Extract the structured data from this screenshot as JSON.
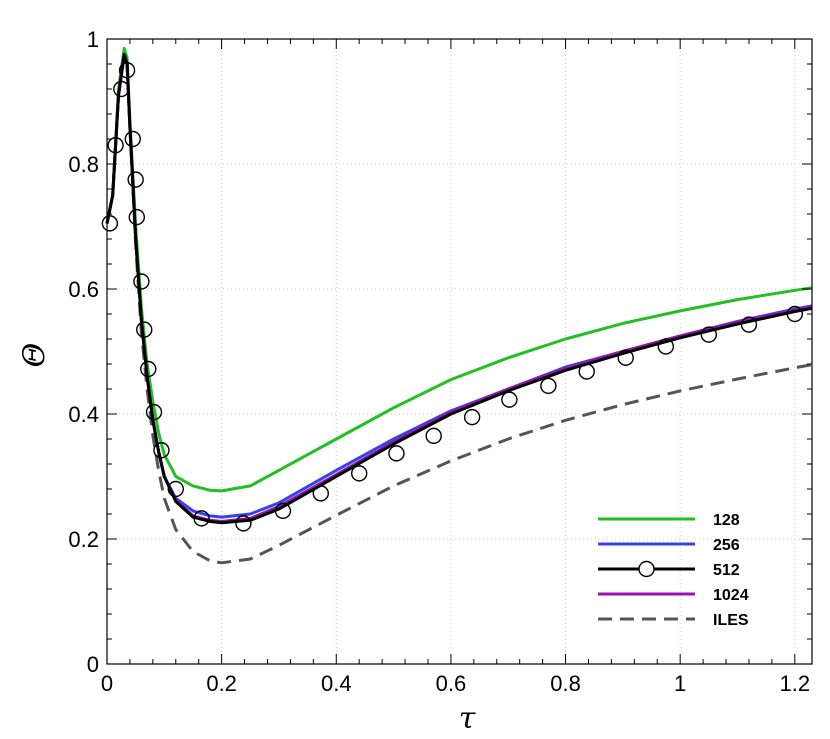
{
  "chart_data": {
    "type": "line",
    "title": "",
    "xlabel": "τ",
    "ylabel": "Θ",
    "xlim": [
      0,
      1.23
    ],
    "ylim": [
      0,
      1
    ],
    "x_ticks": [
      0,
      0.2,
      0.4,
      0.6,
      0.8,
      1,
      1.2
    ],
    "x_tick_labels": [
      "0",
      "0.2",
      "0.4",
      "0.6",
      "0.8",
      "1",
      "1.2"
    ],
    "y_ticks": [
      0,
      0.2,
      0.4,
      0.6,
      0.8,
      1
    ],
    "y_tick_labels": [
      "0",
      "0.2",
      "0.4",
      "0.6",
      "0.8",
      "1"
    ],
    "grid": true,
    "legend_position": "bottom-right",
    "series": [
      {
        "name": "128",
        "color": "#22c022",
        "style": "solid",
        "marker": "none",
        "x": [
          0.0,
          0.01,
          0.02,
          0.03,
          0.035,
          0.04,
          0.05,
          0.06,
          0.07,
          0.08,
          0.09,
          0.1,
          0.12,
          0.15,
          0.18,
          0.2,
          0.25,
          0.3,
          0.4,
          0.5,
          0.6,
          0.7,
          0.8,
          0.9,
          1.0,
          1.1,
          1.2,
          1.23
        ],
        "y": [
          0.705,
          0.75,
          0.92,
          0.985,
          0.97,
          0.87,
          0.7,
          0.57,
          0.48,
          0.42,
          0.37,
          0.335,
          0.3,
          0.285,
          0.278,
          0.277,
          0.285,
          0.31,
          0.36,
          0.41,
          0.455,
          0.49,
          0.52,
          0.545,
          0.565,
          0.583,
          0.598,
          0.602
        ]
      },
      {
        "name": "256",
        "color": "#3344ee",
        "style": "solid",
        "marker": "none",
        "x": [
          0.0,
          0.01,
          0.02,
          0.03,
          0.035,
          0.04,
          0.05,
          0.06,
          0.07,
          0.08,
          0.09,
          0.1,
          0.12,
          0.15,
          0.18,
          0.2,
          0.25,
          0.3,
          0.4,
          0.5,
          0.6,
          0.7,
          0.8,
          0.9,
          1.0,
          1.1,
          1.2,
          1.23
        ],
        "y": [
          0.705,
          0.75,
          0.91,
          0.975,
          0.96,
          0.86,
          0.68,
          0.55,
          0.46,
          0.39,
          0.34,
          0.3,
          0.265,
          0.245,
          0.237,
          0.235,
          0.24,
          0.258,
          0.31,
          0.36,
          0.405,
          0.44,
          0.475,
          0.5,
          0.525,
          0.548,
          0.568,
          0.573
        ]
      },
      {
        "name": "512",
        "color": "#000000",
        "style": "solid",
        "marker": "circle",
        "x": [
          0.0,
          0.01,
          0.02,
          0.03,
          0.035,
          0.04,
          0.05,
          0.06,
          0.07,
          0.08,
          0.09,
          0.1,
          0.12,
          0.15,
          0.18,
          0.2,
          0.25,
          0.3,
          0.4,
          0.5,
          0.6,
          0.7,
          0.8,
          0.9,
          1.0,
          1.1,
          1.2,
          1.23
        ],
        "y": [
          0.705,
          0.75,
          0.91,
          0.975,
          0.96,
          0.86,
          0.68,
          0.55,
          0.46,
          0.39,
          0.34,
          0.3,
          0.26,
          0.235,
          0.228,
          0.226,
          0.23,
          0.248,
          0.3,
          0.352,
          0.4,
          0.437,
          0.47,
          0.497,
          0.522,
          0.544,
          0.564,
          0.569
        ],
        "marker_x": [
          0.005,
          0.015,
          0.025,
          0.035,
          0.045,
          0.05,
          0.052,
          0.06,
          0.065,
          0.072,
          0.082,
          0.095,
          0.12,
          0.165,
          0.238,
          0.307,
          0.373,
          0.44,
          0.505,
          0.57,
          0.637,
          0.702,
          0.77,
          0.837,
          0.905,
          0.975,
          1.05,
          1.12,
          1.2
        ],
        "marker_y": [
          0.705,
          0.83,
          0.92,
          0.95,
          0.84,
          0.775,
          0.715,
          0.612,
          0.535,
          0.472,
          0.403,
          0.342,
          0.28,
          0.233,
          0.225,
          0.245,
          0.273,
          0.305,
          0.337,
          0.365,
          0.395,
          0.423,
          0.445,
          0.468,
          0.49,
          0.508,
          0.527,
          0.543,
          0.56
        ]
      },
      {
        "name": "1024",
        "color": "#9a10b0",
        "style": "solid",
        "marker": "none",
        "x": [
          0.0,
          0.01,
          0.02,
          0.03,
          0.035,
          0.04,
          0.05,
          0.06,
          0.07,
          0.08,
          0.09,
          0.1,
          0.12,
          0.15,
          0.18,
          0.2,
          0.25,
          0.3,
          0.4,
          0.5,
          0.6,
          0.7,
          0.8,
          0.9,
          1.0,
          1.1,
          1.2,
          1.23
        ],
        "y": [
          0.705,
          0.75,
          0.91,
          0.975,
          0.96,
          0.86,
          0.68,
          0.55,
          0.46,
          0.39,
          0.34,
          0.3,
          0.262,
          0.237,
          0.23,
          0.228,
          0.233,
          0.252,
          0.303,
          0.355,
          0.403,
          0.44,
          0.473,
          0.5,
          0.525,
          0.547,
          0.566,
          0.571
        ]
      },
      {
        "name": "ILES",
        "color": "#555555",
        "style": "dashed",
        "marker": "none",
        "x": [
          0.0,
          0.01,
          0.02,
          0.03,
          0.035,
          0.04,
          0.05,
          0.06,
          0.07,
          0.08,
          0.09,
          0.1,
          0.12,
          0.15,
          0.18,
          0.2,
          0.25,
          0.3,
          0.4,
          0.5,
          0.6,
          0.7,
          0.8,
          0.9,
          1.0,
          1.1,
          1.2,
          1.23
        ],
        "y": [
          0.705,
          0.75,
          0.91,
          0.975,
          0.96,
          0.86,
          0.67,
          0.53,
          0.44,
          0.365,
          0.31,
          0.265,
          0.215,
          0.18,
          0.165,
          0.162,
          0.168,
          0.19,
          0.238,
          0.285,
          0.325,
          0.36,
          0.39,
          0.415,
          0.437,
          0.456,
          0.474,
          0.479
        ]
      }
    ]
  }
}
